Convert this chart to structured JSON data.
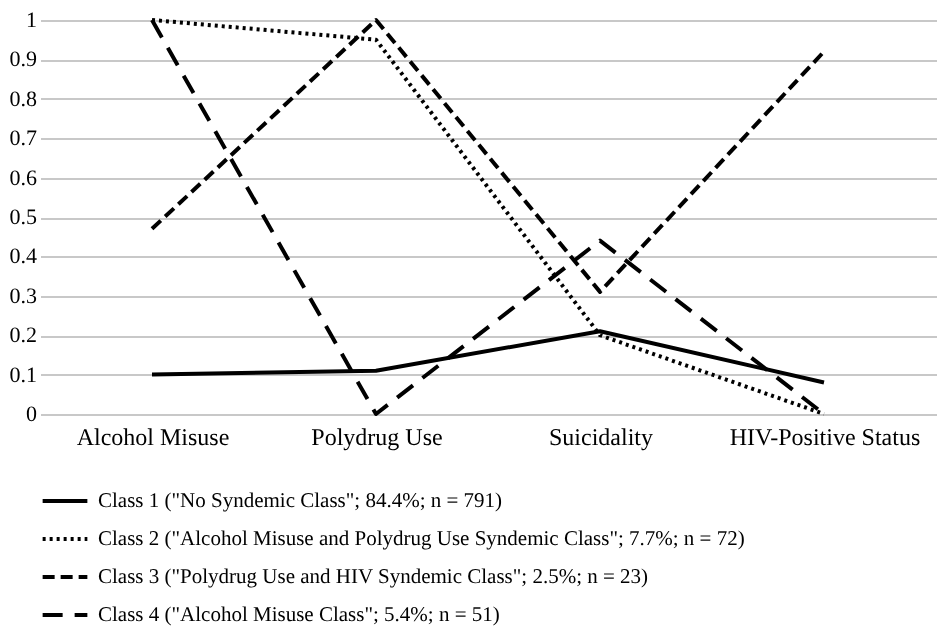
{
  "chart_data": {
    "type": "line",
    "categories": [
      "Alcohol Misuse",
      "Polydrug Use",
      "Suicidality",
      "HIV-Positive Status"
    ],
    "series": [
      {
        "name": "Class 1 (\"No Syndemic Class\"; 84.4%; n = 791)",
        "color": "#000000",
        "line_style": "solid",
        "values": [
          0.1,
          0.11,
          0.21,
          0.08
        ]
      },
      {
        "name": "Class 2 (\"Alcohol Misuse and Polydrug Use Syndemic Class\"; 7.7%; n = 72)",
        "color": "#000000",
        "line_style": "dotted",
        "values": [
          1.0,
          0.95,
          0.2,
          0.0
        ]
      },
      {
        "name": "Class 3 (\"Polydrug Use and HIV Syndemic Class\"; 2.5%; n = 23)",
        "color": "#000000",
        "line_style": "dashed",
        "values": [
          0.47,
          1.0,
          0.31,
          0.92
        ]
      },
      {
        "name": "Class 4 (\"Alcohol Misuse Class\"; 5.4%; n = 51)",
        "color": "#000000",
        "line_style": "dashed",
        "values": [
          1.0,
          0.0,
          0.44,
          0.0
        ]
      }
    ],
    "ylim": [
      0,
      1
    ],
    "yticks": [
      0,
      0.1,
      0.2,
      0.3,
      0.4,
      0.5,
      0.6,
      0.7,
      0.8,
      0.9,
      1
    ],
    "grid": "y",
    "legend": "bottom",
    "marker": "none"
  }
}
